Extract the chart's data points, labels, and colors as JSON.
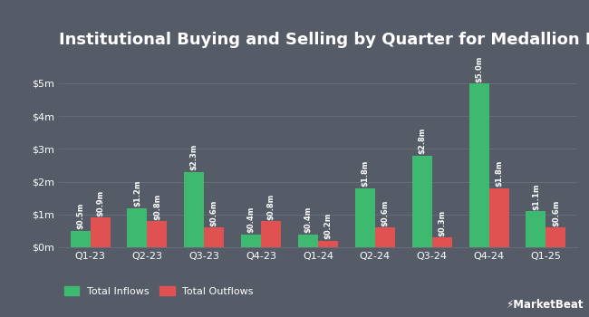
{
  "title": "Institutional Buying and Selling by Quarter for Medallion Financial",
  "categories": [
    "Q1-23",
    "Q2-23",
    "Q3-23",
    "Q4-23",
    "Q1-24",
    "Q2-24",
    "Q3-24",
    "Q4-24",
    "Q1-25"
  ],
  "inflows": [
    0.5,
    1.2,
    2.3,
    0.4,
    0.4,
    1.8,
    2.8,
    5.0,
    1.1
  ],
  "outflows": [
    0.9,
    0.8,
    0.6,
    0.8,
    0.2,
    0.6,
    0.3,
    1.8,
    0.6
  ],
  "inflow_labels": [
    "$0.5m",
    "$1.2m",
    "$2.3m",
    "$0.4m",
    "$0.4m",
    "$1.8m",
    "$2.8m",
    "$5.0m",
    "$1.1m"
  ],
  "outflow_labels": [
    "$0.9m",
    "$0.8m",
    "$0.6m",
    "$0.8m",
    "$0.2m",
    "$0.6m",
    "$0.3m",
    "$1.8m",
    "$0.6m"
  ],
  "inflow_color": "#3dba6f",
  "outflow_color": "#e05252",
  "background_color": "#555b67",
  "text_color": "#ffffff",
  "grid_color": "#666c78",
  "bar_width": 0.35,
  "ylim": [
    0,
    5.8
  ],
  "yticks": [
    0,
    1,
    2,
    3,
    4,
    5
  ],
  "ytick_labels": [
    "$0m",
    "$1m",
    "$2m",
    "$3m",
    "$4m",
    "$5m"
  ],
  "legend_inflow": "Total Inflows",
  "legend_outflow": "Total Outflows",
  "label_fontsize": 6.0,
  "title_fontsize": 13.0,
  "tick_fontsize": 8.0,
  "legend_fontsize": 8.0,
  "fig_width": 6.5,
  "fig_height": 3.5
}
